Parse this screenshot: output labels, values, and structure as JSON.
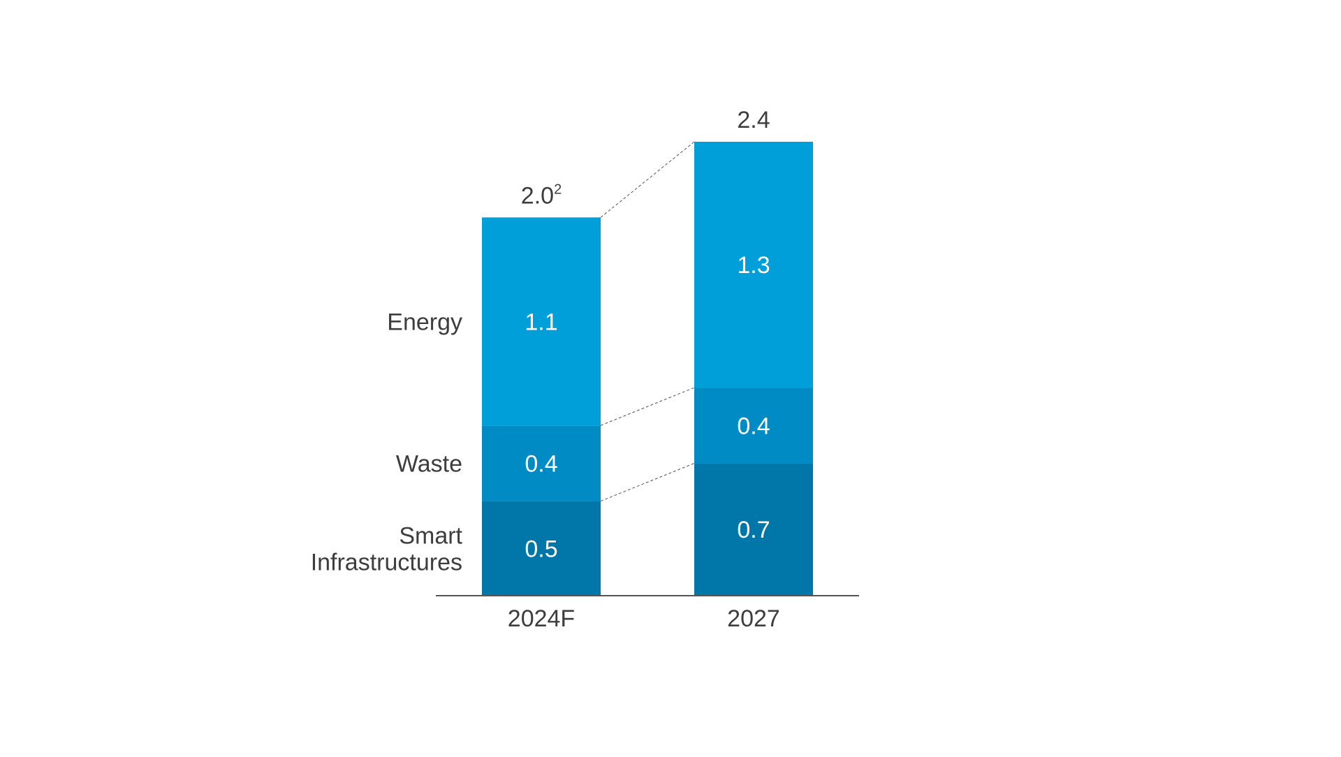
{
  "chart_data": {
    "type": "bar",
    "stacked": true,
    "title": "",
    "xlabel": "",
    "ylabel": "",
    "categories": [
      "2024F",
      "2027"
    ],
    "totals": [
      {
        "value": 2.0,
        "label": "2.0",
        "footnote": "2"
      },
      {
        "value": 2.4,
        "label": "2.4",
        "footnote": ""
      }
    ],
    "series": [
      {
        "name": "Smart Infrastructures",
        "label_lines": [
          "Smart",
          "Infrastructures"
        ],
        "values": [
          0.5,
          0.7
        ],
        "color": "#0077a8"
      },
      {
        "name": "Waste",
        "label_lines": [
          "Waste"
        ],
        "values": [
          0.4,
          0.4
        ],
        "color": "#008bc4"
      },
      {
        "name": "Energy",
        "label_lines": [
          "Energy"
        ],
        "values": [
          1.1,
          1.3
        ],
        "color": "#009fd9"
      }
    ],
    "ylim": [
      0,
      2.4
    ],
    "grid": false,
    "legend": "left-inline",
    "connectors": "dashed"
  }
}
